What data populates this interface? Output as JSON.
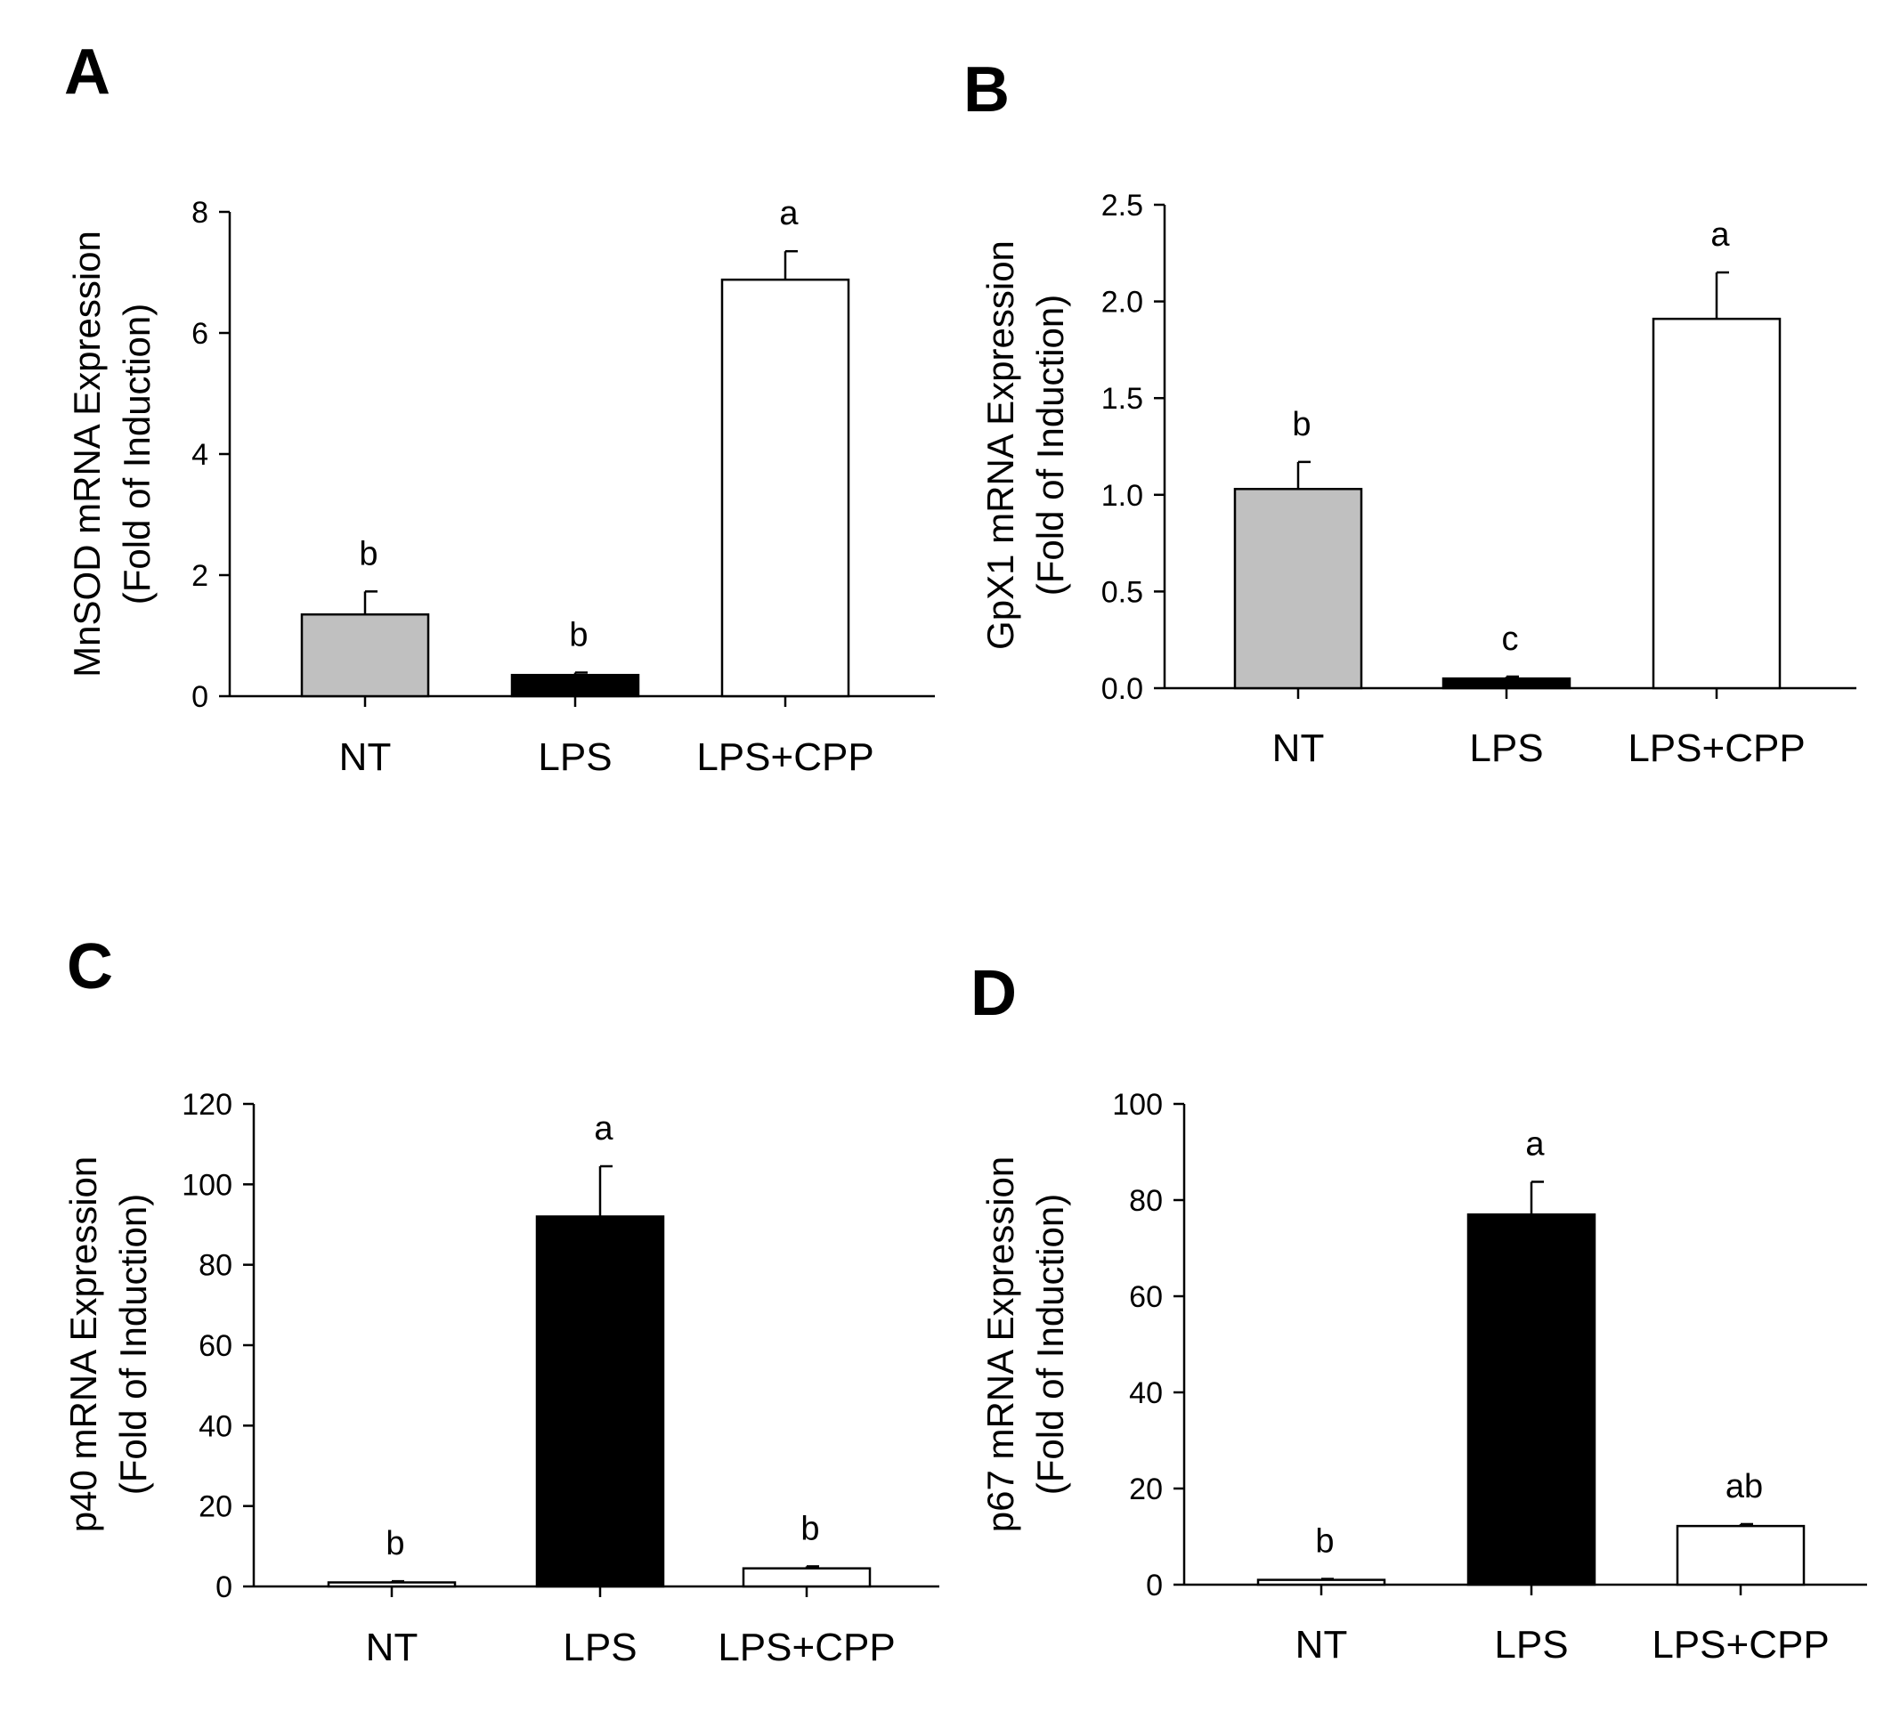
{
  "chart_data": [
    {
      "type": "bar",
      "panel": "A",
      "ylabel": "MnSOD mRNA Expression",
      "ylabel2": "(Fold of Induction)",
      "ylim": [
        0,
        8
      ],
      "yticks": [
        0,
        2,
        4,
        6,
        8
      ],
      "ytick_labels": [
        "0",
        "2",
        "4",
        "6",
        "8"
      ],
      "categories": [
        "NT",
        "LPS",
        "LPS+CPP"
      ],
      "values": [
        1.35,
        0.35,
        6.88
      ],
      "errors": [
        0.38,
        0.04,
        0.47
      ],
      "significance": [
        "b",
        "b",
        "a"
      ],
      "bar_colors": [
        "#c0c0c0",
        "#000000",
        "#ffffff"
      ]
    },
    {
      "type": "bar",
      "panel": "B",
      "ylabel": "GpX1 mRNA Expression",
      "ylabel2": "(Fold of Induction)",
      "ylim": [
        0,
        2.5
      ],
      "yticks": [
        0,
        0.5,
        1.0,
        1.5,
        2.0,
        2.5
      ],
      "ytick_labels": [
        "0.0",
        "0.5",
        "1.0",
        "1.5",
        "2.0",
        "2.5"
      ],
      "categories": [
        "NT",
        "LPS",
        "LPS+CPP"
      ],
      "values": [
        1.03,
        0.05,
        1.91
      ],
      "errors": [
        0.14,
        0.01,
        0.24
      ],
      "significance": [
        "b",
        "c",
        "a"
      ],
      "bar_colors": [
        "#c0c0c0",
        "#000000",
        "#ffffff"
      ]
    },
    {
      "type": "bar",
      "panel": "C",
      "ylabel": "p40 mRNA Expression",
      "ylabel2": "(Fold of Induction)",
      "ylim": [
        0,
        120
      ],
      "yticks": [
        0,
        20,
        40,
        60,
        80,
        100,
        120
      ],
      "ytick_labels": [
        "0",
        "20",
        "40",
        "60",
        "80",
        "100",
        "120"
      ],
      "categories": [
        "NT",
        "LPS",
        "LPS+CPP"
      ],
      "values": [
        1.0,
        92.0,
        4.5
      ],
      "errors": [
        0.3,
        12.5,
        0.5
      ],
      "significance": [
        "b",
        "a",
        "b"
      ],
      "bar_colors": [
        "#ffffff",
        "#000000",
        "#ffffff"
      ]
    },
    {
      "type": "bar",
      "panel": "D",
      "ylabel": "p67 mRNA Expression",
      "ylabel2": "(Fold of Induction)",
      "ylim": [
        0,
        100
      ],
      "yticks": [
        0,
        20,
        40,
        60,
        80,
        100
      ],
      "ytick_labels": [
        "0",
        "20",
        "40",
        "60",
        "80",
        "100"
      ],
      "categories": [
        "NT",
        "LPS",
        "LPS+CPP"
      ],
      "values": [
        1.0,
        77.0,
        12.2
      ],
      "errors": [
        0.2,
        6.8,
        0.4
      ],
      "significance": [
        "b",
        "a",
        "ab"
      ],
      "bar_colors": [
        "#ffffff",
        "#000000",
        "#ffffff"
      ]
    }
  ]
}
